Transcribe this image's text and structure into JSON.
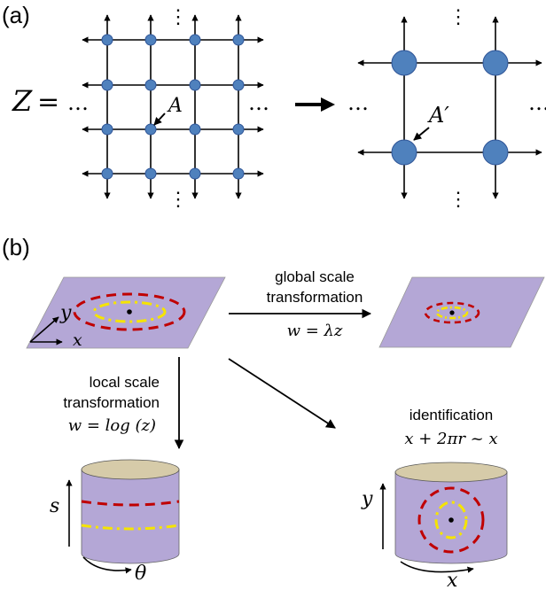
{
  "panel_a": {
    "label": "(a)",
    "z_label": "Z",
    "equals": "=",
    "ellipsis": "…",
    "vdots": "⋮",
    "point_left": "A",
    "point_right": "A′",
    "node_color": "#4f81bd",
    "node_stroke": "#2f5597"
  },
  "panel_b": {
    "label": "(b)",
    "global": {
      "line1": "global scale",
      "line2": "transformation",
      "formula": "w = λz"
    },
    "local": {
      "line1": "local scale",
      "line2": "transformation",
      "formula": "w = log (z)"
    },
    "identification": {
      "line1": "identification",
      "formula": "x + 2πr ~ x"
    },
    "axes": {
      "x": "x",
      "y": "y",
      "s": "s",
      "theta": "θ"
    },
    "plane_color": "#b4a7d6",
    "cylinder_side_color": "#b4a7d6",
    "cylinder_top_color": "#d6cba9",
    "red_color": "#c00000",
    "yellow_color": "#f5e400"
  }
}
